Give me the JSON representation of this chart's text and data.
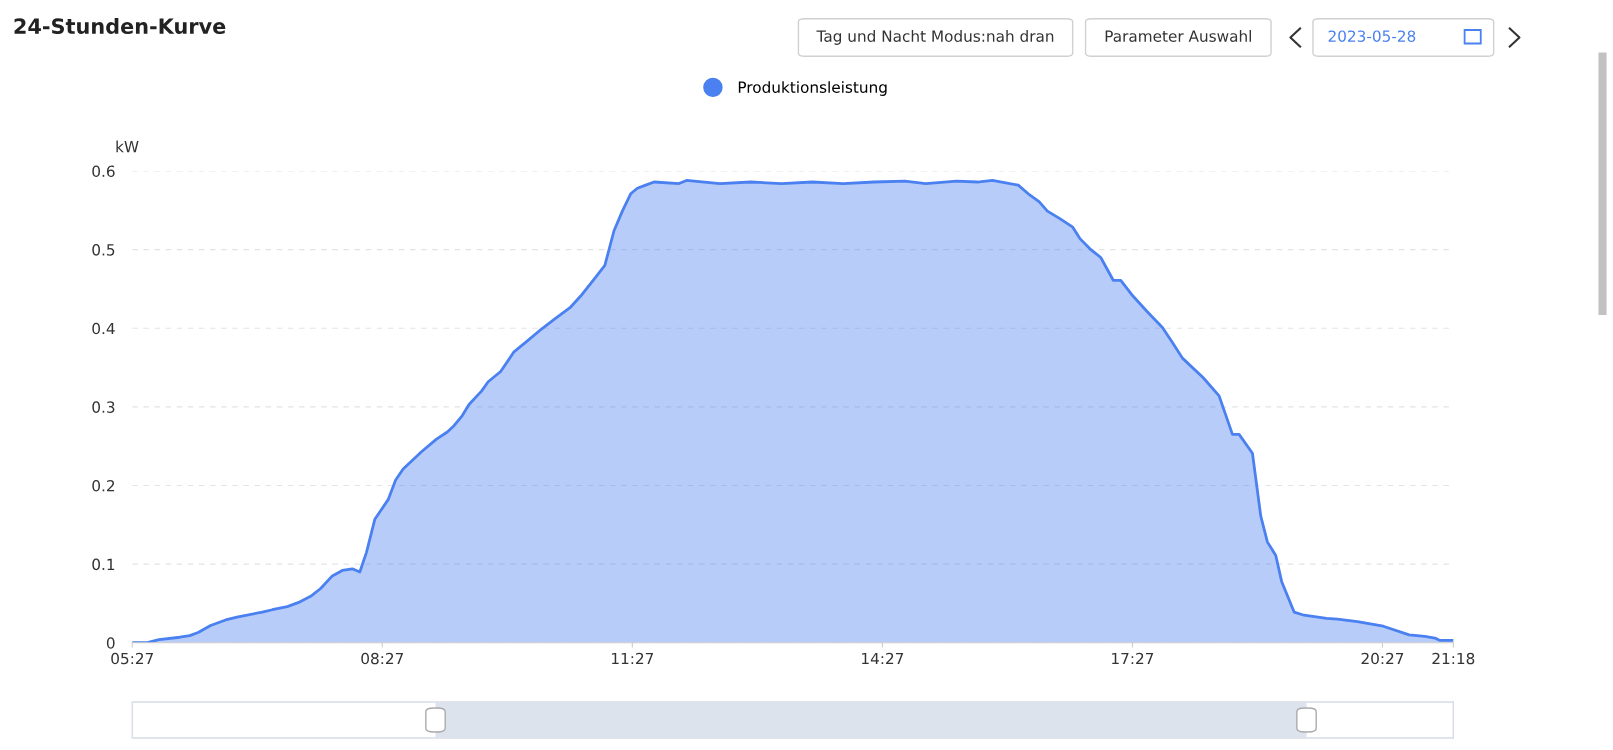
{
  "chart_data": {
    "type": "area",
    "title": "24-Stunden-Kurve",
    "ylabel": "kW",
    "annotations": [
      "Tag und Nacht Modus:nah dran",
      "Parameter Auswahl",
      "2023-05-28"
    ],
    "x": [
      5.45,
      5.62,
      5.77,
      6.02,
      6.14,
      6.24,
      6.39,
      6.57,
      6.72,
      7.01,
      7.13,
      7.31,
      7.44,
      7.59,
      7.71,
      7.85,
      7.97,
      8.09,
      8.18,
      8.26,
      8.36,
      8.52,
      8.61,
      8.7,
      8.92,
      9.1,
      9.23,
      9.31,
      9.41,
      9.49,
      9.64,
      9.72,
      9.87,
      10.03,
      10.18,
      10.36,
      10.52,
      10.71,
      10.83,
      10.98,
      11.12,
      11.23,
      11.33,
      11.43,
      11.51,
      11.61,
      11.71,
      12.01,
      12.1,
      12.5,
      12.87,
      13.24,
      13.61,
      13.98,
      14.35,
      14.72,
      14.97,
      15.34,
      15.59,
      15.77,
      16.08,
      16.2,
      16.33,
      16.43,
      16.57,
      16.73,
      16.82,
      16.94,
      17.07,
      17.22,
      17.31,
      17.44,
      17.62,
      17.81,
      17.93,
      18.05,
      18.3,
      18.49,
      18.65,
      18.73,
      18.89,
      18.99,
      19.07,
      19.17,
      19.24,
      19.39,
      19.51,
      19.78,
      19.91,
      20.15,
      20.46,
      20.77,
      20.96,
      21.08,
      21.14,
      21.24,
      21.3
    ],
    "series": [
      {
        "name": "Produktionsleistung",
        "color": "#4a80f0",
        "values": [
          0,
          0,
          0.004,
          0.007,
          0.009,
          0.013,
          0.022,
          0.029,
          0.033,
          0.039,
          0.042,
          0.046,
          0.051,
          0.059,
          0.069,
          0.085,
          0.092,
          0.094,
          0.09,
          0.115,
          0.157,
          0.182,
          0.207,
          0.221,
          0.243,
          0.259,
          0.268,
          0.276,
          0.289,
          0.303,
          0.32,
          0.332,
          0.345,
          0.37,
          0.383,
          0.399,
          0.412,
          0.427,
          0.441,
          0.461,
          0.48,
          0.524,
          0.549,
          0.571,
          0.578,
          0.582,
          0.586,
          0.584,
          0.588,
          0.584,
          0.586,
          0.584,
          0.586,
          0.584,
          0.586,
          0.587,
          0.584,
          0.587,
          0.586,
          0.588,
          0.582,
          0.571,
          0.561,
          0.549,
          0.54,
          0.529,
          0.514,
          0.501,
          0.49,
          0.461,
          0.461,
          0.443,
          0.422,
          0.401,
          0.382,
          0.362,
          0.337,
          0.314,
          0.265,
          0.265,
          0.241,
          0.161,
          0.128,
          0.111,
          0.078,
          0.039,
          0.035,
          0.031,
          0.03,
          0.027,
          0.021,
          0.01,
          0.008,
          0.006,
          0.003,
          0.003,
          0.003
        ]
      }
    ],
    "xlim": [
      5.45,
      21.3
    ],
    "xticks": [
      {
        "value": 5.45,
        "label": "05:27"
      },
      {
        "value": 8.45,
        "label": "08:27"
      },
      {
        "value": 11.45,
        "label": "11:27"
      },
      {
        "value": 14.45,
        "label": "14:27"
      },
      {
        "value": 17.45,
        "label": "17:27"
      },
      {
        "value": 20.45,
        "label": "20:27"
      },
      {
        "value": 21.3,
        "label": "21:18"
      }
    ],
    "ylim": [
      0,
      0.6
    ],
    "yticks": [
      0,
      0.1,
      0.2,
      0.3,
      0.4,
      0.5,
      0.6
    ],
    "grid": "y",
    "legend": "top",
    "marker": "none",
    "line_style": "solid"
  }
}
